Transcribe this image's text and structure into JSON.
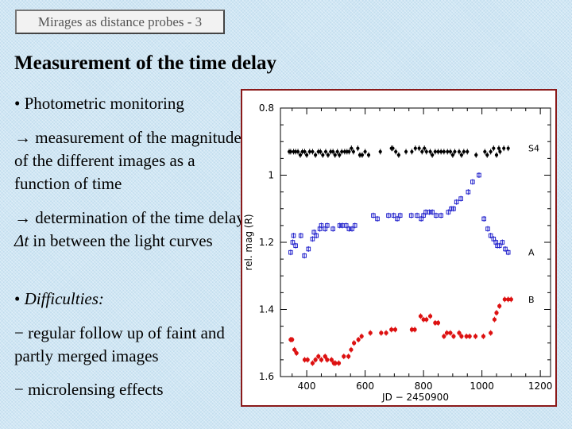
{
  "slide": {
    "title_box": "Mirages as distance probes - 3",
    "heading": "Measurement of the time delay"
  },
  "body": {
    "bullet1": "• Photometric monitoring",
    "arrow1": "→ measurement of the magnitude of the different images as a function of time",
    "arrow2_pre": "→ determination of the time delay ",
    "arrow2_delta": "Δt",
    "arrow2_post": " in between the light curves",
    "bullet2_marker": "• ",
    "bullet2": "Difficulties:",
    "dash1": "− regular follow up of faint and partly merged images",
    "dash2": "− microlensing effects"
  },
  "chart_data": {
    "type": "scatter",
    "xlabel": "JD − 2450900",
    "ylabel": "rel. mag (R)",
    "xlim": [
      310,
      1235
    ],
    "ylim": [
      1.6,
      0.8
    ],
    "y_inverted": true,
    "x_ticks": [
      "400",
      "600",
      "800",
      "1000",
      "1200"
    ],
    "y_ticks": [
      "0.8",
      "1",
      "1.2",
      "1.4",
      "1.6"
    ],
    "grid": false,
    "series": [
      {
        "name": "S4",
        "color": "#000000",
        "marker": "dot",
        "points": [
          [
            340,
            0.93
          ],
          [
            345,
            0.93
          ],
          [
            355,
            0.93
          ],
          [
            362,
            0.93
          ],
          [
            370,
            0.93
          ],
          [
            378,
            0.94
          ],
          [
            385,
            0.93
          ],
          [
            393,
            0.93
          ],
          [
            400,
            0.94
          ],
          [
            410,
            0.93
          ],
          [
            420,
            0.93
          ],
          [
            430,
            0.94
          ],
          [
            440,
            0.93
          ],
          [
            447,
            0.93
          ],
          [
            455,
            0.94
          ],
          [
            465,
            0.93
          ],
          [
            473,
            0.94
          ],
          [
            482,
            0.93
          ],
          [
            490,
            0.93
          ],
          [
            497,
            0.94
          ],
          [
            505,
            0.93
          ],
          [
            512,
            0.94
          ],
          [
            520,
            0.93
          ],
          [
            530,
            0.93
          ],
          [
            538,
            0.93
          ],
          [
            545,
            0.93
          ],
          [
            553,
            0.92
          ],
          [
            560,
            0.93
          ],
          [
            575,
            0.92
          ],
          [
            582,
            0.94
          ],
          [
            590,
            0.94
          ],
          [
            600,
            0.93
          ],
          [
            612,
            0.94
          ],
          [
            652,
            0.93
          ],
          [
            690,
            0.92
          ],
          [
            695,
            0.92
          ],
          [
            705,
            0.93
          ],
          [
            715,
            0.94
          ],
          [
            740,
            0.93
          ],
          [
            760,
            0.93
          ],
          [
            772,
            0.92
          ],
          [
            785,
            0.92
          ],
          [
            795,
            0.93
          ],
          [
            803,
            0.92
          ],
          [
            810,
            0.93
          ],
          [
            823,
            0.93
          ],
          [
            830,
            0.94
          ],
          [
            840,
            0.93
          ],
          [
            850,
            0.93
          ],
          [
            860,
            0.93
          ],
          [
            870,
            0.93
          ],
          [
            882,
            0.93
          ],
          [
            892,
            0.93
          ],
          [
            900,
            0.94
          ],
          [
            907,
            0.93
          ],
          [
            922,
            0.93
          ],
          [
            930,
            0.94
          ],
          [
            938,
            0.93
          ],
          [
            950,
            0.93
          ],
          [
            980,
            0.94
          ],
          [
            1010,
            0.93
          ],
          [
            1018,
            0.94
          ],
          [
            1030,
            0.93
          ],
          [
            1040,
            0.92
          ],
          [
            1050,
            0.94
          ],
          [
            1058,
            0.92
          ],
          [
            1062,
            0.93
          ],
          [
            1075,
            0.92
          ],
          [
            1090,
            0.92
          ]
        ]
      },
      {
        "name": "A",
        "color": "#2222cc",
        "marker": "open-square",
        "points": [
          [
            345,
            1.23
          ],
          [
            352,
            1.2
          ],
          [
            355,
            1.18
          ],
          [
            362,
            1.21
          ],
          [
            380,
            1.18
          ],
          [
            392,
            1.24
          ],
          [
            406,
            1.22
          ],
          [
            420,
            1.19
          ],
          [
            425,
            1.17
          ],
          [
            433,
            1.18
          ],
          [
            445,
            1.16
          ],
          [
            450,
            1.15
          ],
          [
            463,
            1.16
          ],
          [
            470,
            1.15
          ],
          [
            490,
            1.16
          ],
          [
            513,
            1.15
          ],
          [
            522,
            1.15
          ],
          [
            535,
            1.15
          ],
          [
            545,
            1.16
          ],
          [
            555,
            1.16
          ],
          [
            565,
            1.15
          ],
          [
            628,
            1.12
          ],
          [
            642,
            1.13
          ],
          [
            680,
            1.12
          ],
          [
            698,
            1.12
          ],
          [
            710,
            1.13
          ],
          [
            720,
            1.12
          ],
          [
            758,
            1.12
          ],
          [
            778,
            1.12
          ],
          [
            792,
            1.13
          ],
          [
            800,
            1.12
          ],
          [
            808,
            1.11
          ],
          [
            820,
            1.11
          ],
          [
            830,
            1.11
          ],
          [
            843,
            1.12
          ],
          [
            860,
            1.12
          ],
          [
            885,
            1.11
          ],
          [
            895,
            1.1
          ],
          [
            903,
            1.1
          ],
          [
            913,
            1.08
          ],
          [
            928,
            1.07
          ],
          [
            953,
            1.05
          ],
          [
            968,
            1.02
          ],
          [
            990,
            1.0
          ],
          [
            1007,
            1.13
          ],
          [
            1020,
            1.16
          ],
          [
            1030,
            1.18
          ],
          [
            1040,
            1.19
          ],
          [
            1048,
            1.2
          ],
          [
            1053,
            1.21
          ],
          [
            1060,
            1.21
          ],
          [
            1070,
            1.2
          ],
          [
            1080,
            1.22
          ],
          [
            1090,
            1.23
          ]
        ]
      },
      {
        "name": "B",
        "color": "#dd1111",
        "marker": "filled-circle",
        "points": [
          [
            345,
            1.49
          ],
          [
            350,
            1.49
          ],
          [
            358,
            1.52
          ],
          [
            365,
            1.53
          ],
          [
            393,
            1.55
          ],
          [
            403,
            1.55
          ],
          [
            420,
            1.56
          ],
          [
            430,
            1.55
          ],
          [
            440,
            1.54
          ],
          [
            450,
            1.55
          ],
          [
            463,
            1.54
          ],
          [
            470,
            1.55
          ],
          [
            485,
            1.55
          ],
          [
            493,
            1.56
          ],
          [
            498,
            1.56
          ],
          [
            510,
            1.56
          ],
          [
            527,
            1.54
          ],
          [
            543,
            1.54
          ],
          [
            552,
            1.52
          ],
          [
            562,
            1.5
          ],
          [
            577,
            1.49
          ],
          [
            588,
            1.48
          ],
          [
            618,
            1.47
          ],
          [
            655,
            1.47
          ],
          [
            672,
            1.47
          ],
          [
            690,
            1.46
          ],
          [
            703,
            1.46
          ],
          [
            760,
            1.46
          ],
          [
            770,
            1.46
          ],
          [
            790,
            1.42
          ],
          [
            800,
            1.43
          ],
          [
            810,
            1.43
          ],
          [
            823,
            1.42
          ],
          [
            840,
            1.44
          ],
          [
            850,
            1.44
          ],
          [
            870,
            1.48
          ],
          [
            880,
            1.47
          ],
          [
            892,
            1.47
          ],
          [
            903,
            1.48
          ],
          [
            922,
            1.47
          ],
          [
            930,
            1.48
          ],
          [
            947,
            1.48
          ],
          [
            958,
            1.48
          ],
          [
            978,
            1.48
          ],
          [
            1005,
            1.48
          ],
          [
            1030,
            1.47
          ],
          [
            1043,
            1.43
          ],
          [
            1050,
            1.41
          ],
          [
            1060,
            1.39
          ],
          [
            1078,
            1.37
          ],
          [
            1090,
            1.37
          ],
          [
            1100,
            1.37
          ]
        ]
      }
    ]
  }
}
